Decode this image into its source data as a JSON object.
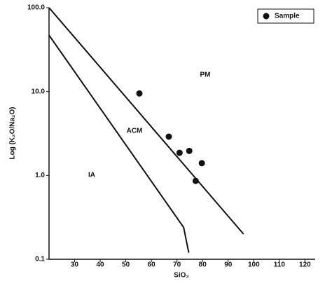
{
  "chart_data": {
    "type": "scatter",
    "x_label": "SiO₂",
    "y_label": "Log (K₂O/Na₂O)",
    "series": [
      {
        "name": "Sample",
        "color": "#111111",
        "x": [
          55.3,
          66.8,
          71,
          74.8,
          79.7,
          77.3
        ],
        "values": [
          9.5,
          2.9,
          1.86,
          1.96,
          1.4,
          0.86
        ]
      }
    ],
    "boundaries": [
      {
        "x": [
          20,
          96
        ],
        "y": [
          100,
          0.2
        ]
      },
      {
        "x": [
          20,
          72.6,
          74.6
        ],
        "y": [
          47,
          0.24,
          0.12
        ]
      }
    ],
    "annotations": [
      "PM",
      "ACM",
      "IA"
    ],
    "xlim": [
      20,
      124
    ],
    "xticks": [
      30,
      40,
      50,
      60,
      70,
      80,
      90,
      100,
      110,
      120
    ],
    "ylim": [
      0.1,
      100
    ],
    "log_y": true,
    "yticks": [
      {
        "value": 100,
        "label": "100.0"
      },
      {
        "value": 10,
        "label": "10.0"
      },
      {
        "value": 1,
        "label": "1.0"
      },
      0.1
    ],
    "legend": "upper right",
    "grid": false
  }
}
